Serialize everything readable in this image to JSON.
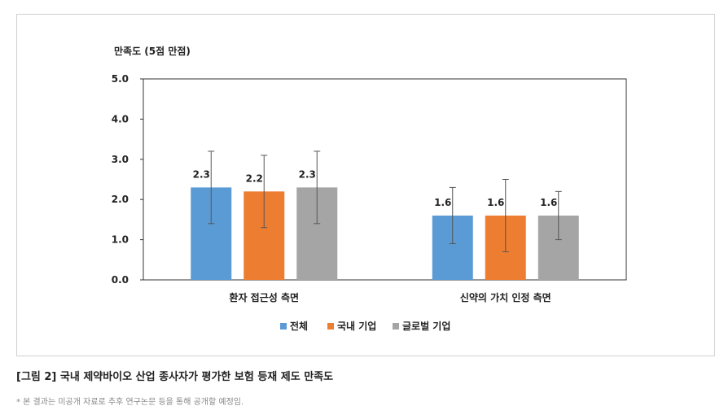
{
  "chart_data": {
    "type": "bar",
    "ylabel": "만족도 (5점 만점)",
    "ylim": [
      0,
      5
    ],
    "yticks": [
      "0.0",
      "1.0",
      "2.0",
      "3.0",
      "4.0",
      "5.0"
    ],
    "categories": [
      "환자 접근성 측면",
      "신약의 가치 인정 측면"
    ],
    "series": [
      {
        "name": "전체",
        "color": "#5b9bd5",
        "values": [
          2.3,
          1.6
        ],
        "labels": [
          "2.3",
          "1.6"
        ],
        "err_low": [
          1.4,
          0.9
        ],
        "err_high": [
          3.2,
          2.3
        ]
      },
      {
        "name": "국내 기업",
        "color": "#ed7d31",
        "values": [
          2.2,
          1.6
        ],
        "labels": [
          "2.2",
          "1.6"
        ],
        "err_low": [
          1.3,
          0.7
        ],
        "err_high": [
          3.1,
          2.5
        ]
      },
      {
        "name": "글로벌 기업",
        "color": "#a5a5a5",
        "values": [
          2.3,
          1.6
        ],
        "labels": [
          "2.3",
          "1.6"
        ],
        "err_low": [
          1.4,
          1.0
        ],
        "err_high": [
          3.2,
          2.2
        ]
      }
    ],
    "legend_position": "bottom",
    "grid": false
  },
  "caption": "[그림 2] 국내 제약바이오 산업 종사자가 평가한 보험 등재 제도 만족도",
  "note": "* 본 결과는 미공개 자료로 추후 연구논문 등을 통해 공개할 예정임."
}
